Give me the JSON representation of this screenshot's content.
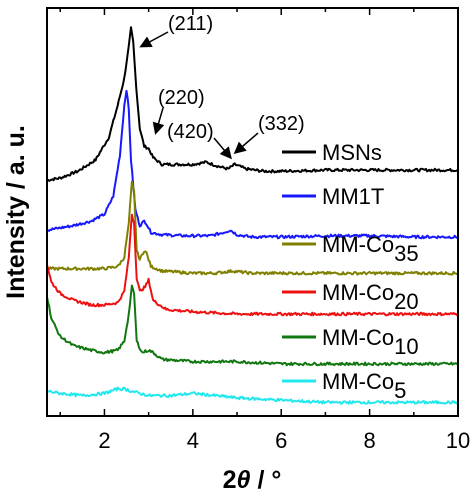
{
  "chart_data": {
    "type": "line",
    "xlabel_symbol": "θ",
    "xlabel_unit": "°",
    "ylabel": "Intensity / a. u.",
    "xlim": [
      0.7,
      10
    ],
    "xticks": [
      2,
      4,
      6,
      8,
      10
    ],
    "yticks_shown": false,
    "grid": false,
    "legend_placement": "right, beside each curve",
    "series": [
      {
        "name": "MSNs",
        "legend_main": "MSNs",
        "legend_sub": "",
        "color": "#000000",
        "points": [
          [
            0.7,
            0.29
          ],
          [
            1.0,
            0.3
          ],
          [
            1.4,
            0.33
          ],
          [
            1.8,
            0.38
          ],
          [
            2.1,
            0.48
          ],
          [
            2.3,
            0.62
          ],
          [
            2.45,
            0.74
          ],
          [
            2.55,
            0.88
          ],
          [
            2.6,
            0.96
          ],
          [
            2.65,
            0.9
          ],
          [
            2.72,
            0.7
          ],
          [
            2.8,
            0.52
          ],
          [
            2.9,
            0.44
          ],
          [
            3.0,
            0.43
          ],
          [
            3.1,
            0.39
          ],
          [
            3.3,
            0.36
          ],
          [
            3.6,
            0.36
          ],
          [
            4.0,
            0.36
          ],
          [
            4.3,
            0.37
          ],
          [
            4.6,
            0.35
          ],
          [
            4.8,
            0.34
          ],
          [
            4.95,
            0.36
          ],
          [
            5.2,
            0.34
          ],
          [
            5.6,
            0.33
          ],
          [
            6.0,
            0.33
          ],
          [
            7.0,
            0.335
          ],
          [
            8.0,
            0.335
          ],
          [
            9.0,
            0.335
          ],
          [
            10.0,
            0.335
          ]
        ]
      },
      {
        "name": "MM1T",
        "legend_main": "MM1T",
        "legend_sub": "",
        "color": "#1818ff",
        "points": [
          [
            0.7,
            0.07
          ],
          [
            1.0,
            0.08
          ],
          [
            1.3,
            0.09
          ],
          [
            1.7,
            0.11
          ],
          [
            2.0,
            0.14
          ],
          [
            2.2,
            0.22
          ],
          [
            2.35,
            0.4
          ],
          [
            2.45,
            0.62
          ],
          [
            2.5,
            0.69
          ],
          [
            2.55,
            0.6
          ],
          [
            2.6,
            0.38
          ],
          [
            2.7,
            0.16
          ],
          [
            2.8,
            0.09
          ],
          [
            2.9,
            0.11
          ],
          [
            2.95,
            0.1
          ],
          [
            3.05,
            0.06
          ],
          [
            3.3,
            0.05
          ],
          [
            3.8,
            0.045
          ],
          [
            4.4,
            0.045
          ],
          [
            4.7,
            0.06
          ],
          [
            4.85,
            0.07
          ],
          [
            5.0,
            0.05
          ],
          [
            5.3,
            0.04
          ],
          [
            6.0,
            0.04
          ],
          [
            7.0,
            0.045
          ],
          [
            8.0,
            0.045
          ],
          [
            9.0,
            0.04
          ],
          [
            10.0,
            0.04
          ]
        ]
      },
      {
        "name": "MM-Co35",
        "legend_main": "MM-Co",
        "legend_sub": "35",
        "color": "#808000",
        "points": [
          [
            0.7,
            -0.1
          ],
          [
            1.0,
            -0.1
          ],
          [
            1.5,
            -0.1
          ],
          [
            2.0,
            -0.1
          ],
          [
            2.3,
            -0.09
          ],
          [
            2.45,
            -0.05
          ],
          [
            2.55,
            0.1
          ],
          [
            2.62,
            0.28
          ],
          [
            2.67,
            0.24
          ],
          [
            2.73,
            -0.02
          ],
          [
            2.8,
            -0.06
          ],
          [
            2.9,
            -0.02
          ],
          [
            2.95,
            -0.03
          ],
          [
            3.05,
            -0.09
          ],
          [
            3.3,
            -0.11
          ],
          [
            4.0,
            -0.12
          ],
          [
            4.5,
            -0.12
          ],
          [
            4.9,
            -0.11
          ],
          [
            5.3,
            -0.12
          ],
          [
            6.0,
            -0.12
          ],
          [
            7.0,
            -0.12
          ],
          [
            8.0,
            -0.12
          ],
          [
            9.0,
            -0.12
          ],
          [
            10.0,
            -0.12
          ]
        ]
      },
      {
        "name": "MM-Co20",
        "legend_main": "MM-Co",
        "legend_sub": "20",
        "color": "#ee1111",
        "points": [
          [
            0.7,
            -0.08
          ],
          [
            0.8,
            -0.16
          ],
          [
            1.0,
            -0.21
          ],
          [
            1.3,
            -0.24
          ],
          [
            1.7,
            -0.26
          ],
          [
            2.0,
            -0.26
          ],
          [
            2.3,
            -0.25
          ],
          [
            2.45,
            -0.2
          ],
          [
            2.55,
            -0.05
          ],
          [
            2.62,
            0.14
          ],
          [
            2.67,
            0.1
          ],
          [
            2.73,
            -0.14
          ],
          [
            2.8,
            -0.2
          ],
          [
            2.92,
            -0.18
          ],
          [
            3.0,
            -0.15
          ],
          [
            3.1,
            -0.24
          ],
          [
            3.4,
            -0.28
          ],
          [
            4.0,
            -0.29
          ],
          [
            5.0,
            -0.3
          ],
          [
            6.0,
            -0.3
          ],
          [
            7.0,
            -0.3
          ],
          [
            8.0,
            -0.3
          ],
          [
            9.0,
            -0.3
          ],
          [
            10.0,
            -0.3
          ]
        ]
      },
      {
        "name": "MM-Co10",
        "legend_main": "MM-Co",
        "legend_sub": "10",
        "color": "#117711",
        "points": [
          [
            0.7,
            -0.22
          ],
          [
            0.8,
            -0.32
          ],
          [
            1.0,
            -0.4
          ],
          [
            1.3,
            -0.44
          ],
          [
            1.7,
            -0.46
          ],
          [
            2.0,
            -0.47
          ],
          [
            2.3,
            -0.46
          ],
          [
            2.45,
            -0.42
          ],
          [
            2.55,
            -0.3
          ],
          [
            2.62,
            -0.18
          ],
          [
            2.67,
            -0.21
          ],
          [
            2.73,
            -0.42
          ],
          [
            2.85,
            -0.47
          ],
          [
            3.0,
            -0.46
          ],
          [
            3.1,
            -0.47
          ],
          [
            3.3,
            -0.5
          ],
          [
            4.0,
            -0.51
          ],
          [
            5.0,
            -0.51
          ],
          [
            6.0,
            -0.52
          ],
          [
            7.0,
            -0.52
          ],
          [
            8.0,
            -0.52
          ],
          [
            9.0,
            -0.52
          ],
          [
            10.0,
            -0.52
          ]
        ]
      },
      {
        "name": "MM-Co5",
        "legend_main": "MM-Co",
        "legend_sub": "5",
        "color": "#22e8ee",
        "points": [
          [
            0.7,
            -0.64
          ],
          [
            1.0,
            -0.65
          ],
          [
            1.5,
            -0.66
          ],
          [
            2.0,
            -0.65
          ],
          [
            2.3,
            -0.63
          ],
          [
            2.45,
            -0.63
          ],
          [
            2.6,
            -0.64
          ],
          [
            3.0,
            -0.66
          ],
          [
            3.5,
            -0.66
          ],
          [
            4.0,
            -0.65
          ],
          [
            4.5,
            -0.66
          ],
          [
            5.0,
            -0.67
          ],
          [
            6.0,
            -0.68
          ],
          [
            7.0,
            -0.69
          ],
          [
            8.0,
            -0.69
          ],
          [
            9.0,
            -0.69
          ],
          [
            10.0,
            -0.69
          ]
        ]
      }
    ],
    "annotations": [
      {
        "text": "(211)",
        "x": 2.6,
        "y": 0.96
      },
      {
        "text": "(220)",
        "x": 2.95,
        "y": 0.45
      },
      {
        "text": "(420)",
        "x": 4.8,
        "y": 0.36
      },
      {
        "text": "(332)",
        "x": 5.0,
        "y": 0.36
      }
    ]
  }
}
